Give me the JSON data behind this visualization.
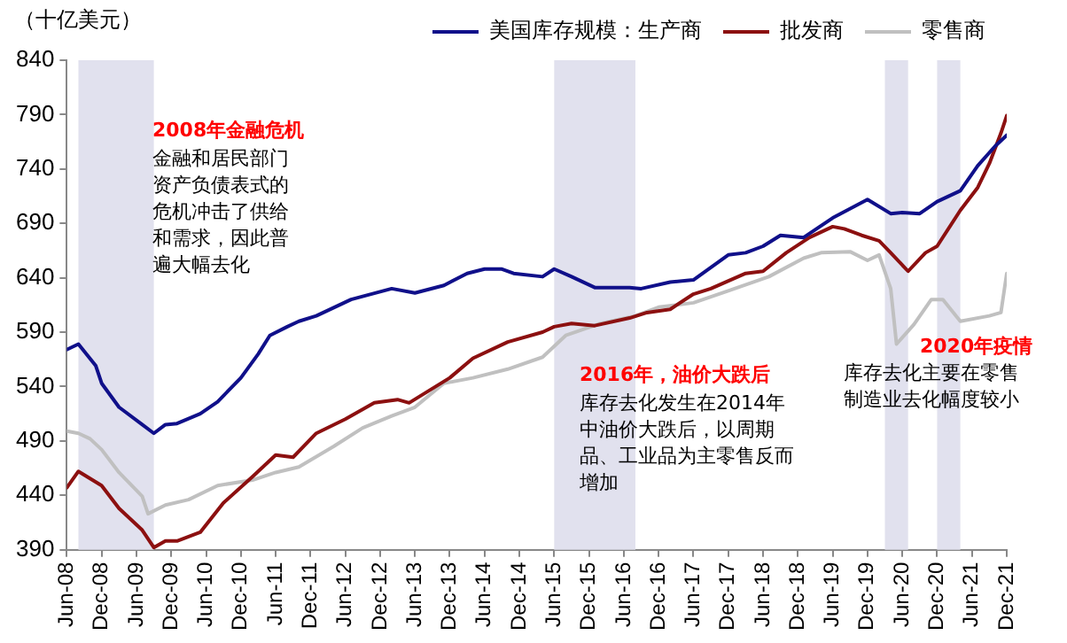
{
  "chart_data": {
    "type": "line",
    "ylabel": "（十亿美元）",
    "xlim": [
      "2008-06",
      "2021-12"
    ],
    "xticks": [
      {
        "value": "2008-06",
        "label": "Jun-08"
      },
      {
        "value": "2008-12",
        "label": "Dec-08"
      },
      {
        "value": "2009-06",
        "label": "Jun-09"
      },
      {
        "value": "2009-12",
        "label": "Dec-09"
      },
      {
        "value": "2010-06",
        "label": "Jun-10"
      },
      {
        "value": "2010-12",
        "label": "Dec-10"
      },
      {
        "value": "2011-06",
        "label": "Jun-11"
      },
      {
        "value": "2011-12",
        "label": "Dec-11"
      },
      {
        "value": "2012-06",
        "label": "Jun-12"
      },
      {
        "value": "2012-12",
        "label": "Dec-12"
      },
      {
        "value": "2013-06",
        "label": "Jun-13"
      },
      {
        "value": "2013-12",
        "label": "Dec-13"
      },
      {
        "value": "2014-06",
        "label": "Jun-14"
      },
      {
        "value": "2014-12",
        "label": "Dec-14"
      },
      {
        "value": "2015-06",
        "label": "Jun-15"
      },
      {
        "value": "2015-12",
        "label": "Dec-15"
      },
      {
        "value": "2016-06",
        "label": "Jun-16"
      },
      {
        "value": "2016-12",
        "label": "Dec-16"
      },
      {
        "value": "2017-06",
        "label": "Jun-17"
      },
      {
        "value": "2017-12",
        "label": "Dec-17"
      },
      {
        "value": "2018-06",
        "label": "Jun-18"
      },
      {
        "value": "2018-12",
        "label": "Dec-18"
      },
      {
        "value": "2019-06",
        "label": "Jun-19"
      },
      {
        "value": "2019-12",
        "label": "Dec-19"
      },
      {
        "value": "2020-06",
        "label": "Jun-20"
      },
      {
        "value": "2020-12",
        "label": "Dec-20"
      },
      {
        "value": "2021-06",
        "label": "Jun-21"
      },
      {
        "value": "2021-12",
        "label": "Dec-21"
      }
    ],
    "ylim": [
      390,
      840
    ],
    "yticks": [
      390,
      440,
      490,
      540,
      590,
      640,
      690,
      740,
      790,
      840
    ],
    "grid": false,
    "legend": "top",
    "bands": [
      {
        "axis": "x",
        "from": "2008-08",
        "to": "2009-09",
        "color": "#e1e1ee"
      },
      {
        "axis": "x",
        "from": "2015-06",
        "to": "2016-08",
        "color": "#e1e1ee"
      },
      {
        "axis": "x",
        "from": "2020-03",
        "to": "2020-07",
        "color": "#e1e1ee"
      },
      {
        "axis": "x",
        "from": "2020-12",
        "to": "2021-04",
        "color": "#e1e1ee"
      }
    ],
    "series": [
      {
        "name": "美国库存规模：生产商",
        "color": "#10108a",
        "x": [
          "2008-06",
          "2008-08",
          "2008-11",
          "2008-12",
          "2009-03",
          "2009-07",
          "2009-09",
          "2009-11",
          "2010-01",
          "2010-05",
          "2010-08",
          "2010-12",
          "2011-03",
          "2011-05",
          "2011-08",
          "2011-10",
          "2012-01",
          "2012-07",
          "2013-02",
          "2013-06",
          "2013-11",
          "2014-03",
          "2014-06",
          "2014-09",
          "2014-11",
          "2015-04",
          "2015-06",
          "2015-09",
          "2016-01",
          "2016-07",
          "2016-09",
          "2017-02",
          "2017-06",
          "2017-12",
          "2018-03",
          "2018-06",
          "2018-09",
          "2019-01",
          "2019-06",
          "2019-12",
          "2020-04",
          "2020-06",
          "2020-09",
          "2020-12",
          "2021-04",
          "2021-07",
          "2021-10",
          "2021-12"
        ],
        "values": [
          574,
          579,
          559,
          543,
          521,
          505,
          497,
          505,
          506,
          515,
          526,
          548,
          570,
          587,
          595,
          600,
          605,
          620,
          630,
          626,
          633,
          644,
          648,
          648,
          644,
          641,
          648,
          641,
          631,
          631,
          630,
          636,
          638,
          661,
          663,
          669,
          679,
          677,
          695,
          712,
          699,
          700,
          699,
          710,
          720,
          743,
          761,
          771
        ]
      },
      {
        "name": "批发商",
        "color": "#8c1010",
        "x": [
          "2008-06",
          "2008-08",
          "2008-12",
          "2009-03",
          "2009-07",
          "2009-09",
          "2009-11",
          "2010-01",
          "2010-05",
          "2010-09",
          "2011-02",
          "2011-06",
          "2011-09",
          "2012-01",
          "2012-06",
          "2012-11",
          "2013-03",
          "2013-05",
          "2013-12",
          "2014-04",
          "2014-10",
          "2015-04",
          "2015-06",
          "2015-09",
          "2016-01",
          "2016-07",
          "2016-10",
          "2017-02",
          "2017-06",
          "2017-09",
          "2018-03",
          "2018-06",
          "2018-10",
          "2019-02",
          "2019-06",
          "2019-08",
          "2019-11",
          "2020-02",
          "2020-04",
          "2020-07",
          "2020-10",
          "2020-12",
          "2021-04",
          "2021-07",
          "2021-09",
          "2021-11",
          "2021-12"
        ],
        "values": [
          447,
          462,
          449,
          428,
          408,
          392,
          398,
          398,
          406,
          433,
          457,
          477,
          475,
          497,
          510,
          525,
          528,
          525,
          548,
          566,
          581,
          590,
          595,
          598,
          596,
          603,
          608,
          611,
          625,
          630,
          644,
          646,
          663,
          677,
          687,
          685,
          679,
          674,
          663,
          646,
          663,
          669,
          702,
          723,
          745,
          773,
          789
        ]
      },
      {
        "name": "零售商",
        "color": "#c0c0c0",
        "x": [
          "2008-06",
          "2008-08",
          "2008-10",
          "2008-12",
          "2009-03",
          "2009-07",
          "2009-08",
          "2009-11",
          "2010-03",
          "2010-08",
          "2011-02",
          "2011-06",
          "2011-10",
          "2012-04",
          "2012-09",
          "2013-02",
          "2013-06",
          "2013-11",
          "2014-04",
          "2014-10",
          "2015-04",
          "2015-08",
          "2016-02",
          "2016-08",
          "2016-12",
          "2017-06",
          "2017-12",
          "2018-07",
          "2019-01",
          "2019-04",
          "2019-09",
          "2019-12",
          "2020-02",
          "2020-04",
          "2020-05",
          "2020-08",
          "2020-11",
          "2021-01",
          "2021-04",
          "2021-09",
          "2021-11",
          "2021-12"
        ],
        "values": [
          499,
          497,
          492,
          482,
          461,
          439,
          423,
          431,
          436,
          449,
          454,
          461,
          466,
          485,
          502,
          513,
          521,
          543,
          548,
          556,
          567,
          587,
          598,
          605,
          613,
          617,
          628,
          641,
          658,
          663,
          664,
          656,
          661,
          630,
          579,
          597,
          620,
          620,
          600,
          605,
          608,
          644
        ]
      }
    ],
    "annotations": [
      "2008年金融危机",
      "金融和居民部门资产负债表式的危机冲击了供给和需求，因此普遍大幅去化",
      "2016年，油价大跌后",
      "库存去化发生在2014年中油价大跌后，以周期品、工业品为主零售反而增加",
      "2020年疫情",
      "库存去化主要在零售制造业去化幅度较小"
    ]
  }
}
